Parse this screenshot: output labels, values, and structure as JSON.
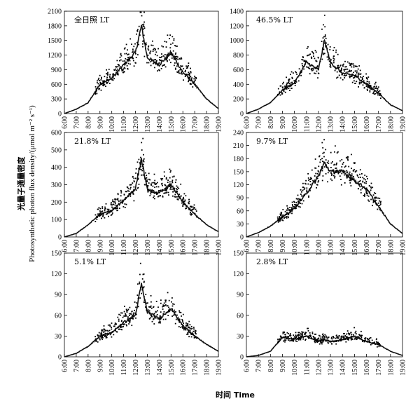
{
  "figure": {
    "ylabel_cn": "光量子通量密度",
    "ylabel_en": "Photosynthetic photon flux density/(μmol m⁻² s⁻¹)",
    "xlabel": "时间 Time"
  },
  "chart_data": [
    {
      "type": "scatter",
      "title": "全日照 LT",
      "x_ticks": [
        "6:00",
        "7:00",
        "8:00",
        "9:00",
        "10:00",
        "11:00",
        "12:00",
        "13:00",
        "14:00",
        "15:00",
        "16:00",
        "17:00",
        "18:00",
        "19:00"
      ],
      "ylim": [
        0,
        2100
      ],
      "y_ticks": [
        0,
        300,
        600,
        900,
        1200,
        1500,
        1800,
        2100
      ],
      "x": [
        "6:00",
        "7:00",
        "8:00",
        "9:00",
        "10:00",
        "11:00",
        "12:00",
        "12:30",
        "13:00",
        "14:00",
        "15:00",
        "16:00",
        "17:00",
        "18:00",
        "19:00"
      ],
      "values": [
        0,
        90,
        220,
        600,
        720,
        1000,
        1250,
        1800,
        1150,
        1000,
        1250,
        850,
        600,
        300,
        100
      ]
    },
    {
      "type": "scatter",
      "title": "46.5% LT",
      "x_ticks": [
        "6:00",
        "7:00",
        "8:00",
        "9:00",
        "10:00",
        "11:00",
        "12:00",
        "13:00",
        "14:00",
        "15:00",
        "16:00",
        "17:00",
        "18:00",
        "19:00"
      ],
      "ylim": [
        0,
        1400
      ],
      "y_ticks": [
        0,
        200,
        400,
        600,
        800,
        1000,
        1200,
        1400
      ],
      "x": [
        "6:00",
        "7:00",
        "8:00",
        "9:00",
        "10:00",
        "11:00",
        "12:00",
        "12:30",
        "13:00",
        "14:00",
        "15:00",
        "16:00",
        "17:00",
        "18:00",
        "19:00"
      ],
      "values": [
        0,
        60,
        150,
        320,
        420,
        700,
        600,
        1000,
        700,
        550,
        520,
        400,
        280,
        120,
        40
      ]
    },
    {
      "type": "scatter",
      "title": "21.8% LT",
      "x_ticks": [
        "6:00",
        "7:00",
        "8:00",
        "9:00",
        "10:00",
        "11:00",
        "12:00",
        "13:00",
        "14:00",
        "15:00",
        "16:00",
        "17:00",
        "18:00",
        "19:00"
      ],
      "ylim": [
        0,
        600
      ],
      "y_ticks": [
        0,
        100,
        200,
        300,
        400,
        500,
        600
      ],
      "x": [
        "6:00",
        "7:00",
        "8:00",
        "9:00",
        "10:00",
        "11:00",
        "12:00",
        "12:30",
        "13:00",
        "14:00",
        "15:00",
        "16:00",
        "17:00",
        "18:00",
        "19:00"
      ],
      "values": [
        0,
        20,
        70,
        130,
        150,
        210,
        280,
        450,
        270,
        250,
        300,
        200,
        130,
        70,
        30
      ]
    },
    {
      "type": "scatter",
      "title": "9.7% LT",
      "x_ticks": [
        "6:00",
        "7:00",
        "8:00",
        "9:00",
        "10:00",
        "11:00",
        "12:00",
        "13:00",
        "14:00",
        "15:00",
        "16:00",
        "17:00",
        "18:00",
        "19:00"
      ],
      "ylim": [
        0,
        240
      ],
      "y_ticks": [
        0,
        30,
        60,
        90,
        120,
        150,
        180,
        210,
        240
      ],
      "x": [
        "6:00",
        "7:00",
        "8:00",
        "9:00",
        "10:00",
        "11:00",
        "12:00",
        "12:30",
        "13:00",
        "14:00",
        "15:00",
        "16:00",
        "17:00",
        "18:00",
        "19:00"
      ],
      "values": [
        0,
        10,
        25,
        45,
        65,
        100,
        140,
        170,
        150,
        150,
        130,
        110,
        70,
        30,
        8
      ]
    },
    {
      "type": "scatter",
      "title": "5.1% LT",
      "x_ticks": [
        "6:00",
        "7:00",
        "8:00",
        "9:00",
        "10:00",
        "11:00",
        "12:00",
        "13:00",
        "14:00",
        "15:00",
        "16:00",
        "17:00",
        "18:00",
        "19:00"
      ],
      "ylim": [
        0,
        150
      ],
      "y_ticks": [
        0,
        30,
        60,
        90,
        120,
        150
      ],
      "x": [
        "6:00",
        "7:00",
        "8:00",
        "9:00",
        "10:00",
        "11:00",
        "12:00",
        "12:30",
        "13:00",
        "14:00",
        "15:00",
        "16:00",
        "17:00",
        "18:00",
        "19:00"
      ],
      "values": [
        0,
        5,
        15,
        30,
        35,
        50,
        60,
        105,
        65,
        55,
        70,
        45,
        30,
        18,
        8
      ]
    },
    {
      "type": "scatter",
      "title": "2.8% LT",
      "x_ticks": [
        "6:00",
        "7:00",
        "8:00",
        "9:00",
        "10:00",
        "11:00",
        "12:00",
        "13:00",
        "14:00",
        "15:00",
        "16:00",
        "17:00",
        "18:00",
        "19:00"
      ],
      "ylim": [
        0,
        150
      ],
      "y_ticks": [
        0,
        30,
        60,
        90,
        120,
        150
      ],
      "x": [
        "6:00",
        "7:00",
        "8:00",
        "9:00",
        "10:00",
        "11:00",
        "12:00",
        "12:30",
        "13:00",
        "14:00",
        "15:00",
        "16:00",
        "17:00",
        "18:00",
        "19:00"
      ],
      "values": [
        0,
        2,
        8,
        28,
        25,
        30,
        22,
        25,
        22,
        25,
        30,
        22,
        18,
        8,
        2
      ]
    }
  ]
}
